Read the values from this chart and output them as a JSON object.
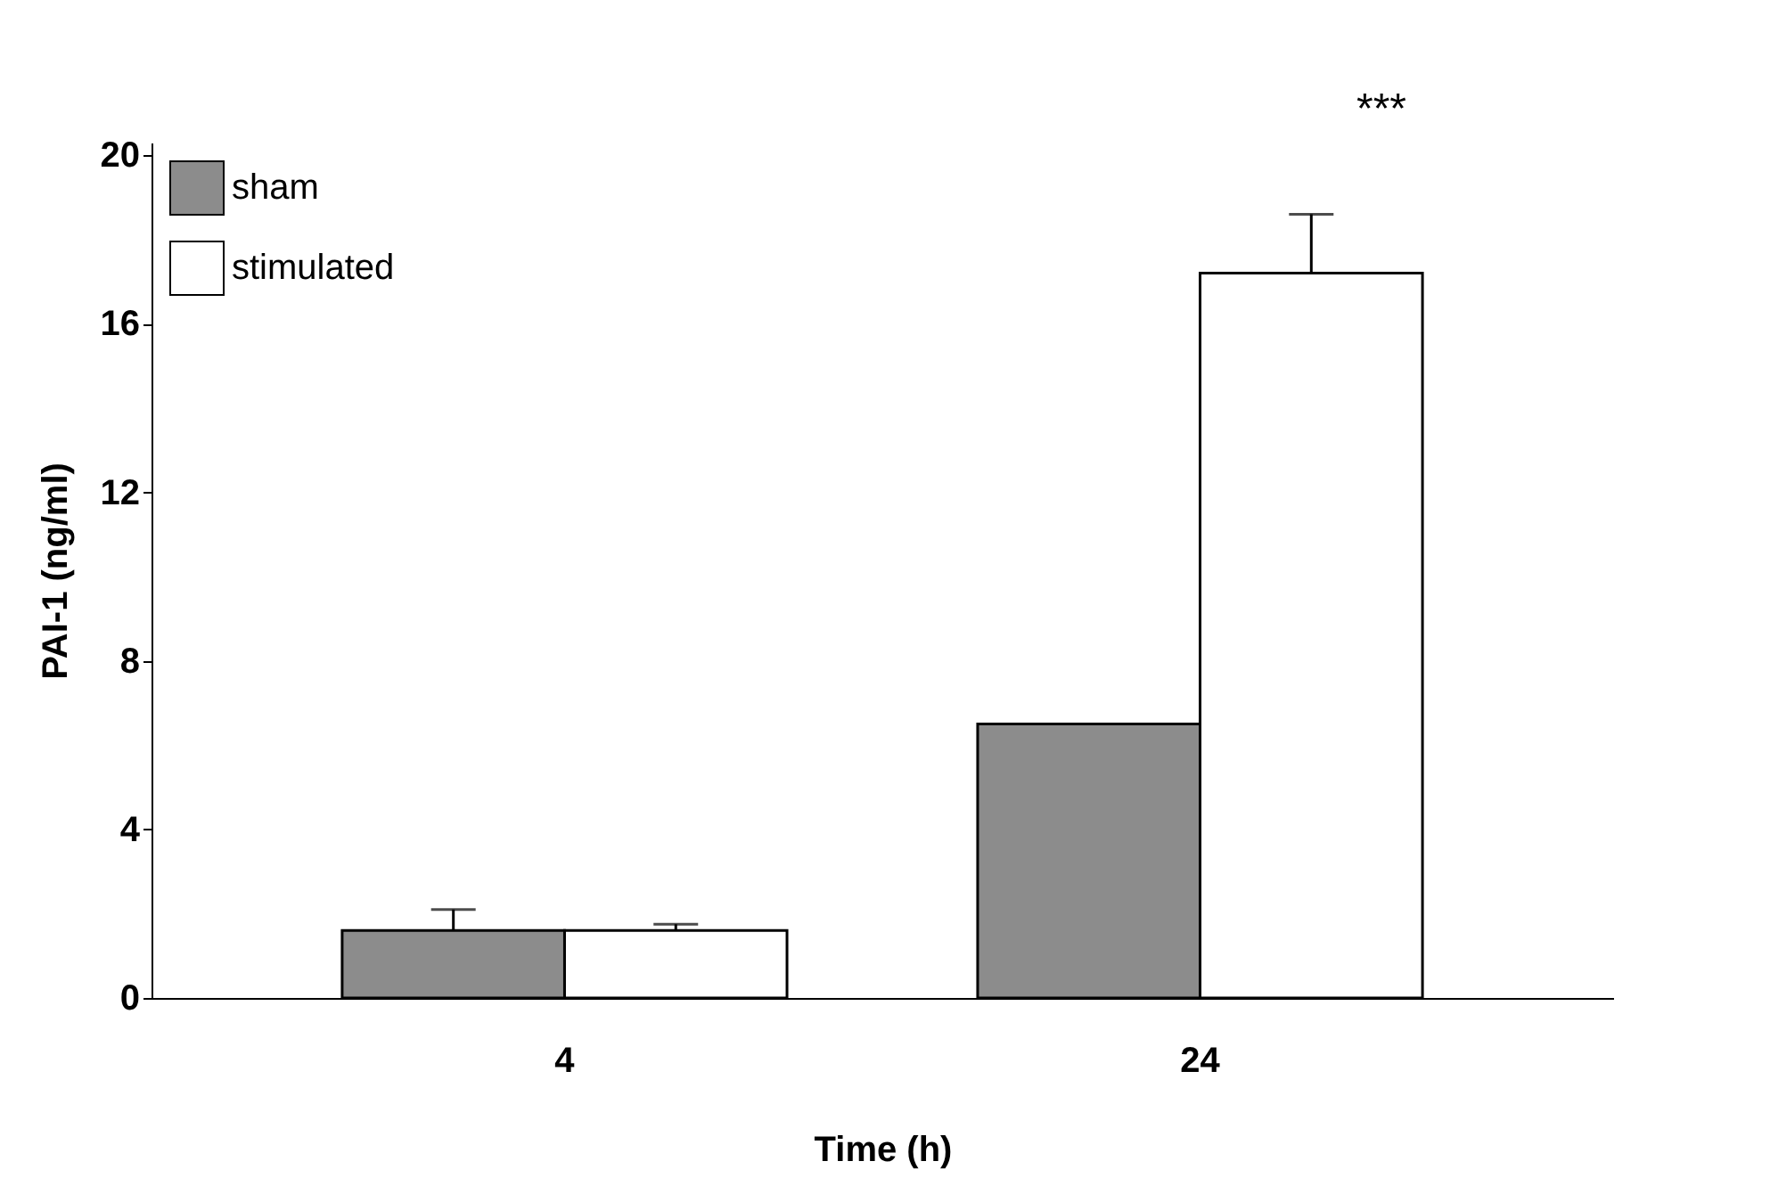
{
  "chart_data": {
    "type": "bar",
    "xlabel": "Time (h)",
    "ylabel": "PAI-1 (ng/ml)",
    "categories": [
      "4",
      "24"
    ],
    "series": [
      {
        "name": "sham",
        "color": "#8c8c8c",
        "values": [
          1.6,
          6.5
        ],
        "errors": [
          [
            1.6,
            2.1
          ],
          null
        ]
      },
      {
        "name": "stimulated",
        "color": "#ffffff",
        "values": [
          1.6,
          17.2
        ],
        "errors": [
          [
            1.6,
            1.75
          ],
          [
            17.2,
            18.6
          ]
        ]
      }
    ],
    "ylim": [
      0,
      20.3
    ],
    "yticks": [
      0,
      4,
      8,
      12,
      16,
      20
    ],
    "grid": false,
    "legend": "top left",
    "annotations": [
      "***"
    ]
  }
}
